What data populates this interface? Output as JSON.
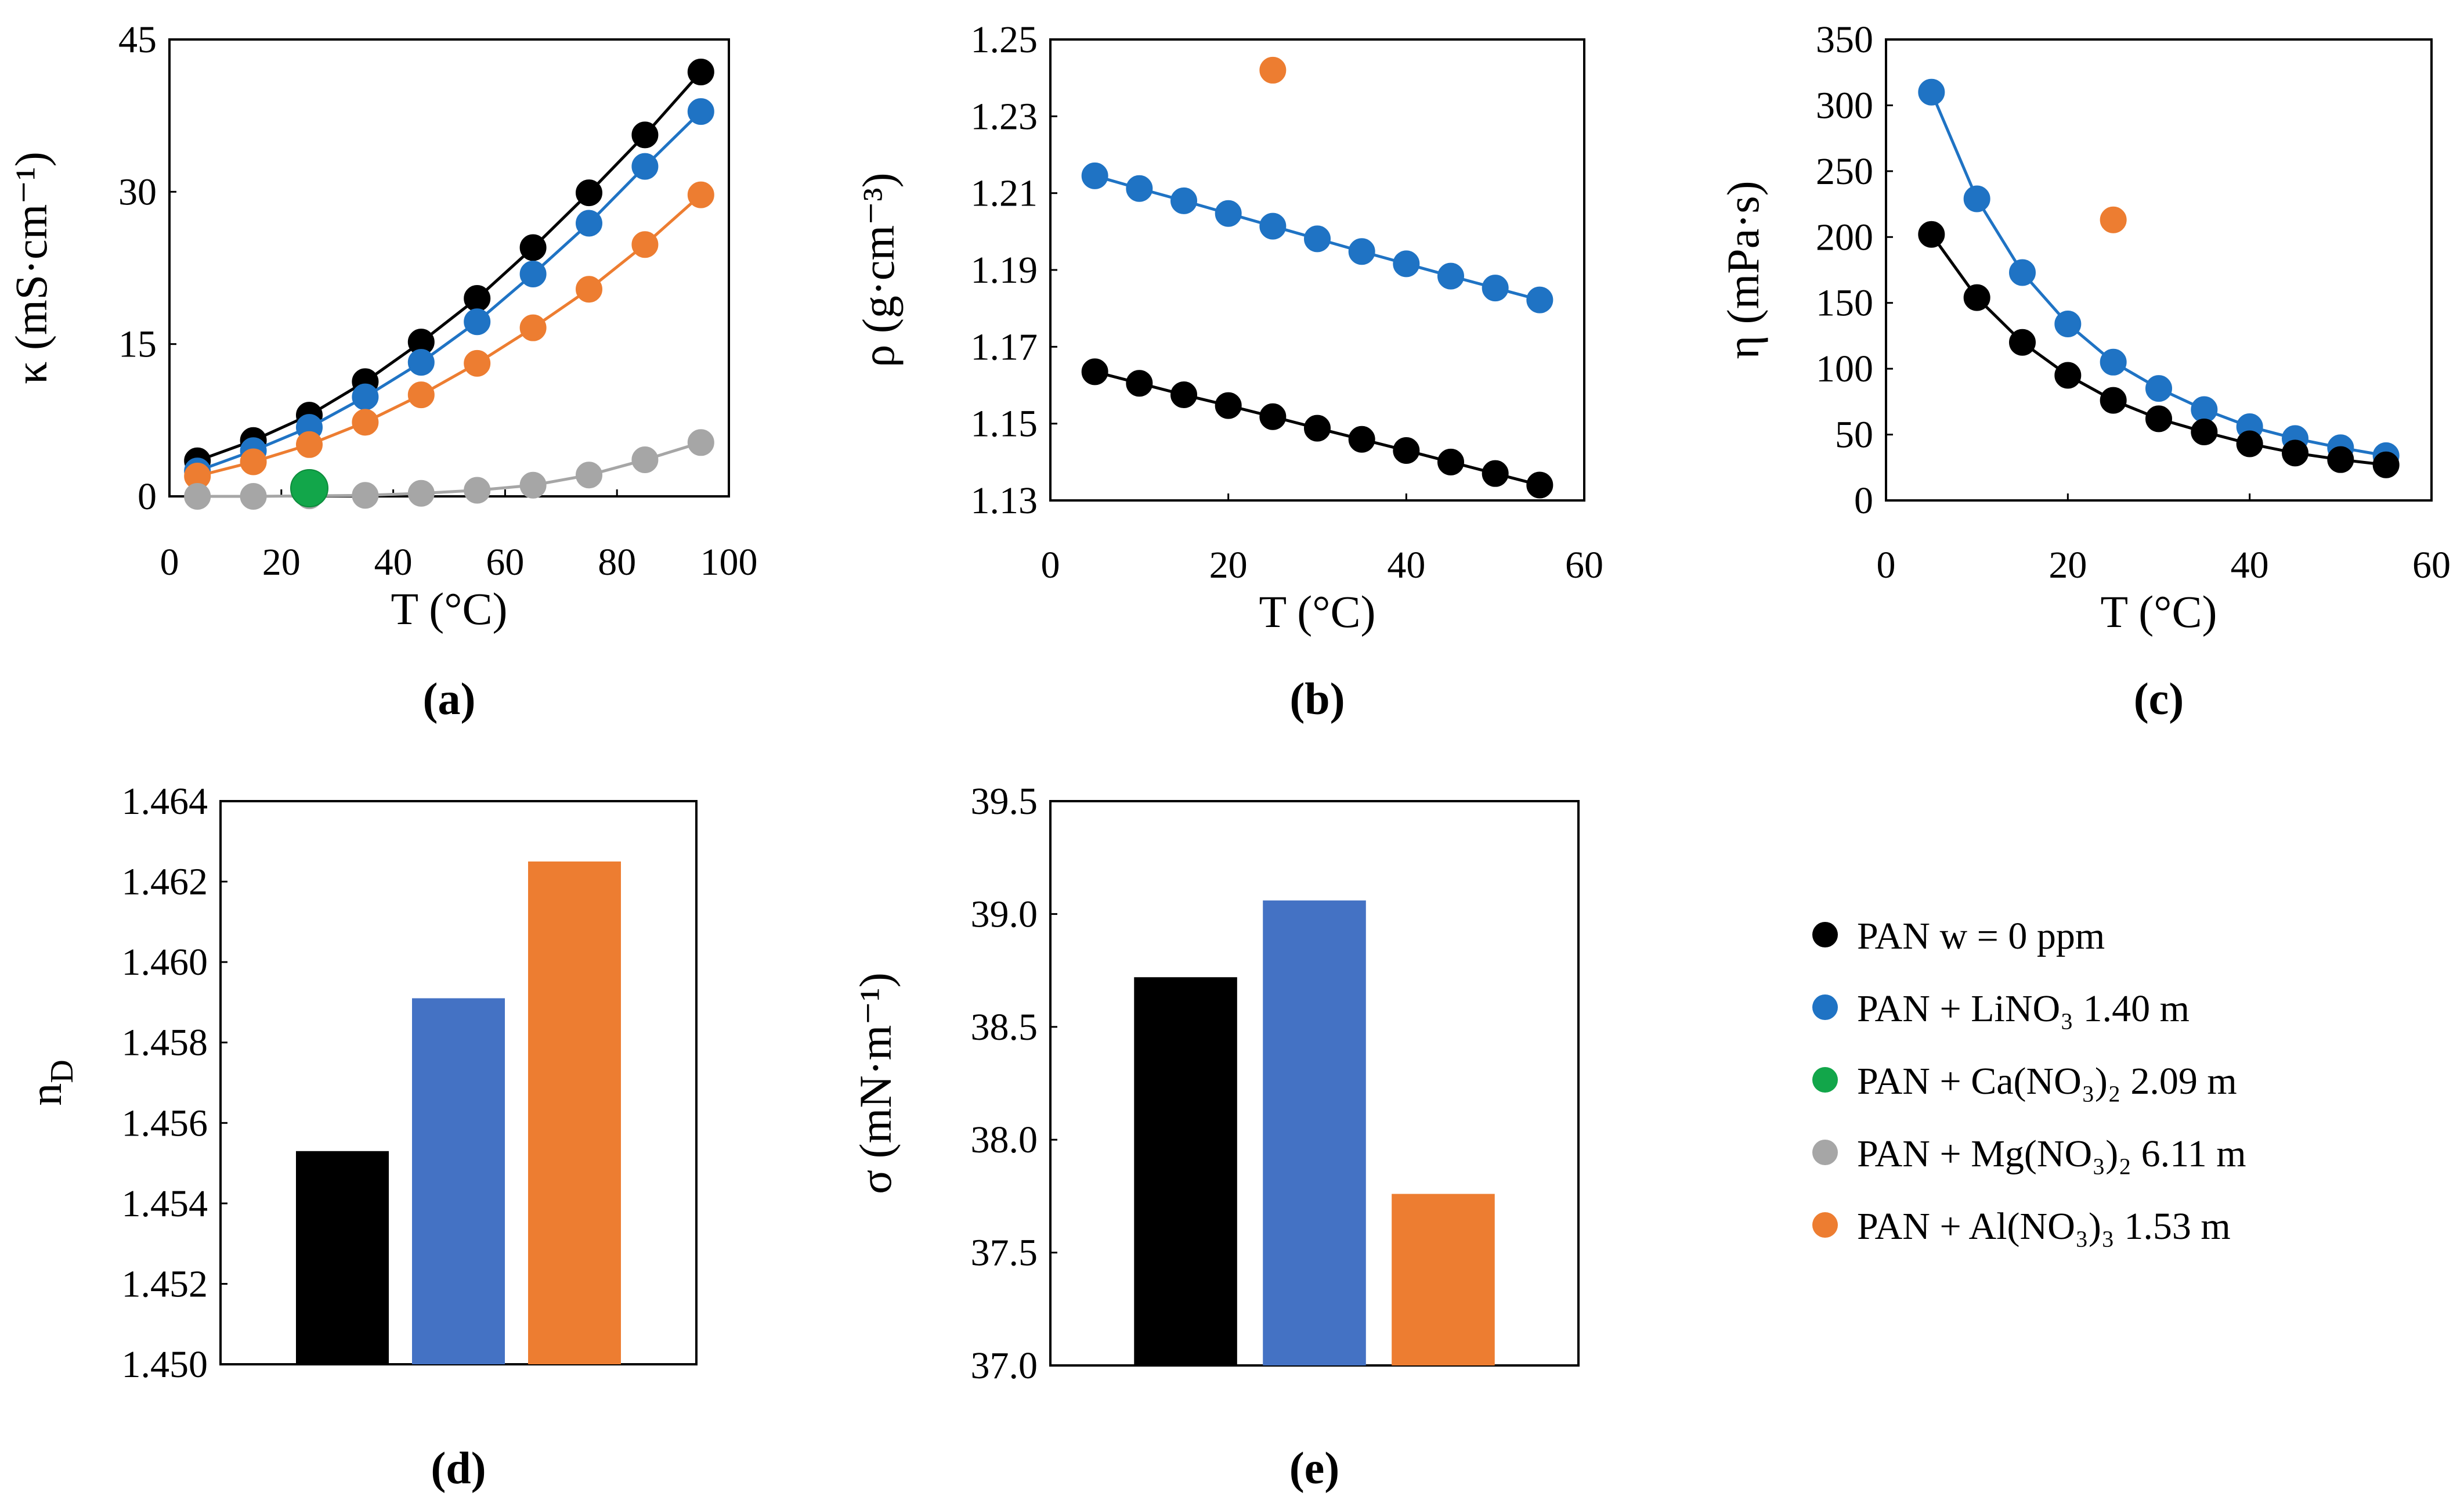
{
  "colors": {
    "black": "#000000",
    "blue": "#1f73c4",
    "green": "#12a64a",
    "gray": "#a6a6a6",
    "orange": "#ed7d31",
    "bar_blue": "#4472c4",
    "bar_orange": "#ed7d31"
  },
  "legend": [
    {
      "label": "PAN w = 0 ppm",
      "color": "#000000"
    },
    {
      "label": "PAN + LiNO₃ 1.40 m",
      "color": "#1f73c4"
    },
    {
      "label": "PAN + Ca(NO₃)₂ 2.09 m",
      "color": "#12a64a"
    },
    {
      "label": "PAN + Mg(NO₃)₂ 6.11 m",
      "color": "#a6a6a6"
    },
    {
      "label": "PAN + Al(NO₃)₃ 1.53 m",
      "color": "#ed7d31"
    }
  ],
  "chart_data": [
    {
      "id": "a",
      "type": "line",
      "title": "(a)",
      "xlabel": "T (°C)",
      "ylabel": "κ (mS·cm⁻¹)",
      "xlim": [
        0,
        100
      ],
      "ylim": [
        0,
        45
      ],
      "xticks": [
        0,
        20,
        40,
        60,
        80,
        100
      ],
      "yticks": [
        0,
        15,
        30,
        45
      ],
      "series": [
        {
          "name": "PAN w = 0 ppm",
          "color": "#000000",
          "line": true,
          "x": [
            5,
            15,
            25,
            35,
            45,
            55,
            65,
            75,
            85,
            95
          ],
          "y": [
            3.5,
            5.5,
            8.0,
            11.3,
            15.2,
            19.5,
            24.5,
            29.9,
            35.6,
            41.8
          ]
        },
        {
          "name": "PAN + LiNO₃ 1.40 m",
          "color": "#1f73c4",
          "line": true,
          "x": [
            5,
            15,
            25,
            35,
            45,
            55,
            65,
            75,
            85,
            95
          ],
          "y": [
            2.5,
            4.5,
            6.8,
            9.8,
            13.2,
            17.2,
            21.9,
            26.9,
            32.5,
            37.9
          ]
        },
        {
          "name": "PAN + Al(NO₃)₃ 1.53 m",
          "color": "#ed7d31",
          "line": true,
          "x": [
            5,
            15,
            25,
            35,
            45,
            55,
            65,
            75,
            85,
            95
          ],
          "y": [
            2.0,
            3.4,
            5.1,
            7.3,
            10.0,
            13.1,
            16.6,
            20.4,
            24.8,
            29.7
          ]
        },
        {
          "name": "PAN + Mg(NO₃)₂ 6.11 m",
          "color": "#a6a6a6",
          "line": true,
          "x": [
            5,
            15,
            25,
            35,
            45,
            55,
            65,
            75,
            85,
            95
          ],
          "y": [
            0.0,
            0.0,
            0.05,
            0.1,
            0.3,
            0.6,
            1.1,
            2.1,
            3.6,
            5.3
          ]
        },
        {
          "name": "PAN + Ca(NO₃)₂ 2.09 m",
          "color": "#12a64a",
          "line": false,
          "big": true,
          "x": [
            25
          ],
          "y": [
            0.8
          ]
        }
      ]
    },
    {
      "id": "b",
      "type": "line",
      "title": "(b)",
      "xlabel": "T (°C)",
      "ylabel": "ρ (g·cm⁻³)",
      "xlim": [
        0,
        60
      ],
      "ylim": [
        1.13,
        1.25
      ],
      "xticks": [
        0,
        20,
        40,
        60
      ],
      "yticks": [
        1.13,
        1.15,
        1.17,
        1.19,
        1.21,
        1.23,
        1.25
      ],
      "series": [
        {
          "name": "PAN + LiNO₃ 1.40 m",
          "color": "#1f73c4",
          "line": true,
          "x": [
            5,
            10,
            15,
            20,
            25,
            30,
            35,
            40,
            45,
            50,
            55
          ],
          "y": [
            1.2145,
            1.2112,
            1.208,
            1.2047,
            1.2014,
            1.1981,
            1.1948,
            1.1916,
            1.1884,
            1.1853,
            1.1822
          ]
        },
        {
          "name": "PAN w = 0 ppm",
          "color": "#000000",
          "line": true,
          "x": [
            5,
            10,
            15,
            20,
            25,
            30,
            35,
            40,
            45,
            50,
            55
          ],
          "y": [
            1.1635,
            1.1605,
            1.1575,
            1.1547,
            1.1518,
            1.1488,
            1.1459,
            1.143,
            1.14,
            1.137,
            1.134
          ]
        },
        {
          "name": "PAN + Al(NO₃)₃ 1.53 m",
          "color": "#ed7d31",
          "line": false,
          "x": [
            25
          ],
          "y": [
            1.242
          ]
        }
      ]
    },
    {
      "id": "c",
      "type": "line",
      "title": "(c)",
      "xlabel": "T (°C)",
      "ylabel": "η (mPa·s)",
      "xlim": [
        0,
        60
      ],
      "ylim": [
        0,
        350
      ],
      "xticks": [
        0,
        20,
        40,
        60
      ],
      "yticks": [
        0,
        50,
        100,
        150,
        200,
        250,
        300,
        350
      ],
      "series": [
        {
          "name": "PAN + LiNO₃ 1.40 m",
          "color": "#1f73c4",
          "line": true,
          "x": [
            5,
            10,
            15,
            20,
            25,
            30,
            35,
            40,
            45,
            50,
            55
          ],
          "y": [
            310,
            229,
            173,
            134,
            105,
            85,
            69,
            56,
            47,
            40,
            34
          ]
        },
        {
          "name": "PAN w = 0 ppm",
          "color": "#000000",
          "line": true,
          "x": [
            5,
            10,
            15,
            20,
            25,
            30,
            35,
            40,
            45,
            50,
            55
          ],
          "y": [
            202,
            154,
            120,
            95,
            76,
            62,
            52,
            43,
            36,
            31,
            27
          ]
        },
        {
          "name": "PAN + Al(NO₃)₃ 1.53 m",
          "color": "#ed7d31",
          "line": false,
          "x": [
            25
          ],
          "y": [
            213
          ]
        }
      ]
    },
    {
      "id": "d",
      "type": "bar",
      "title": "(d)",
      "ylabel": "n",
      "ylabel_sub": "D",
      "ylim": [
        1.45,
        1.464
      ],
      "yticks": [
        "1.450",
        "1.452",
        "1.454",
        "1.456",
        "1.458",
        "1.460",
        "1.462",
        "1.464"
      ],
      "categories": [
        "PAN w = 0 ppm",
        "PAN + LiNO₃ 1.40 m",
        "PAN + Al(NO₃)₃ 1.53 m"
      ],
      "values": [
        1.4553,
        1.4591,
        1.4625
      ],
      "colors": [
        "#000000",
        "#4472c4",
        "#ed7d31"
      ]
    },
    {
      "id": "e",
      "type": "bar",
      "title": "(e)",
      "ylabel": "σ (mN·m⁻¹)",
      "ylim": [
        37.0,
        39.5
      ],
      "yticks": [
        "37.0",
        "37.5",
        "38.0",
        "38.5",
        "39.0",
        "39.5"
      ],
      "categories": [
        "PAN w = 0 ppm",
        "PAN + LiNO₃ 1.40 m",
        "PAN + Al(NO₃)₃ 1.53 m"
      ],
      "values": [
        38.72,
        39.06,
        37.76
      ],
      "colors": [
        "#000000",
        "#4472c4",
        "#ed7d31"
      ]
    }
  ]
}
